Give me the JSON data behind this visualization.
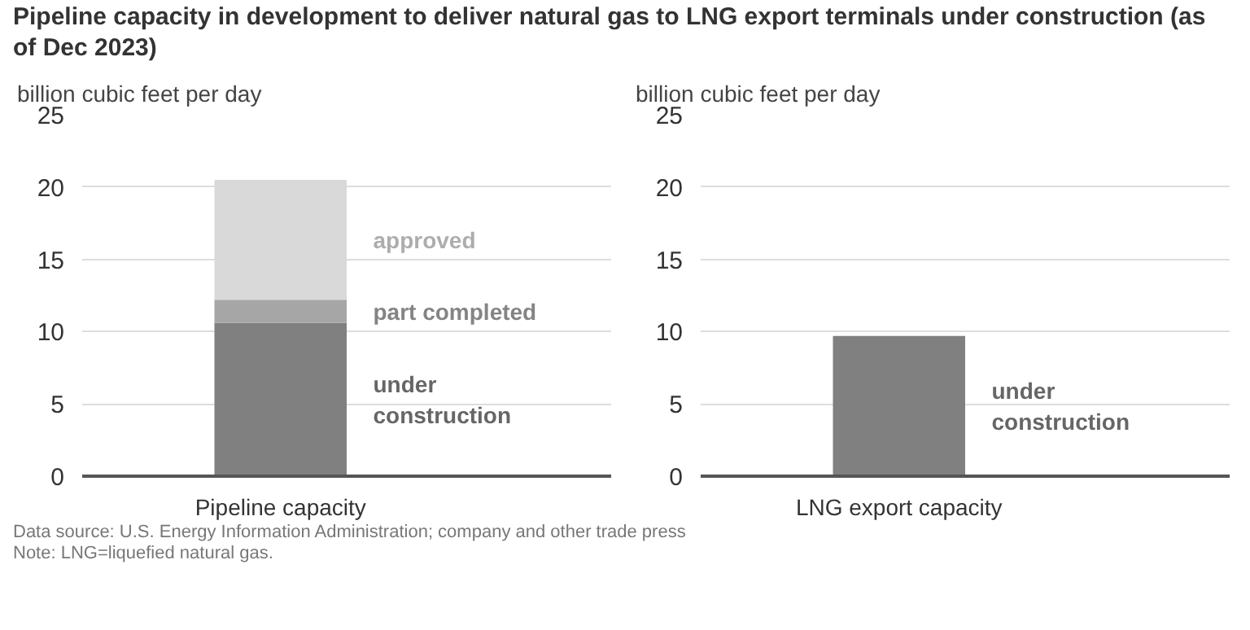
{
  "chart_data": [
    {
      "type": "bar",
      "title": "Pipeline capacity in development to deliver natural gas to LNG export terminals under construction (as of Dec 2023)",
      "ylabel": "billion cubic feet per day",
      "stacked": true,
      "categories": [
        "Pipeline capacity"
      ],
      "series": [
        {
          "name": "under construction",
          "color": "#808080",
          "values": [
            10.6
          ]
        },
        {
          "name": "part completed",
          "color": "#a6a6a6",
          "values": [
            1.6
          ]
        },
        {
          "name": "approved",
          "color": "#d9d9d9",
          "values": [
            8.3
          ]
        }
      ],
      "ylim": [
        0,
        25
      ],
      "yticks": [
        0,
        5,
        10,
        15,
        20,
        25
      ],
      "grid": "y",
      "annotations": [
        "Data source: U.S. Energy Information Administration; company and other trade press",
        "Note: LNG=liquefied natural gas."
      ]
    },
    {
      "type": "bar",
      "ylabel": "billion cubic feet per day",
      "categories": [
        "LNG export capacity"
      ],
      "series": [
        {
          "name": "under construction",
          "color": "#808080",
          "values": [
            9.7
          ]
        }
      ],
      "ylim": [
        0,
        25
      ],
      "yticks": [
        0,
        5,
        10,
        15,
        20,
        25
      ],
      "grid": "y"
    }
  ]
}
